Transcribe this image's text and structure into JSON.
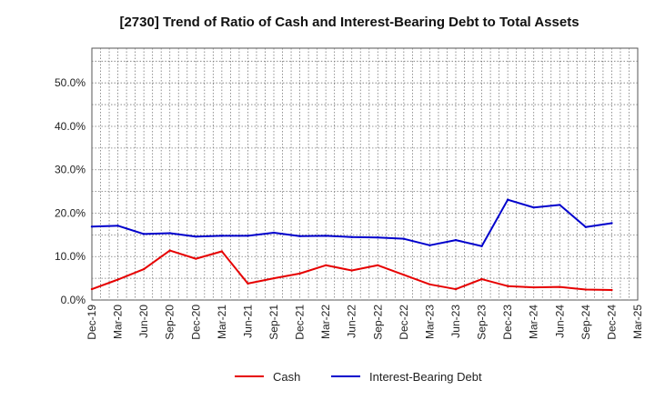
{
  "chart_data": {
    "type": "line",
    "title": "[2730]  Trend of Ratio of Cash and Interest-Bearing Debt to Total Assets",
    "xlabel": "",
    "ylabel": "",
    "x": [
      "Dec-19",
      "Mar-20",
      "Jun-20",
      "Sep-20",
      "Dec-20",
      "Mar-21",
      "Jun-21",
      "Sep-21",
      "Dec-21",
      "Mar-22",
      "Jun-22",
      "Sep-22",
      "Dec-22",
      "Mar-23",
      "Jun-23",
      "Sep-23",
      "Dec-23",
      "Mar-24",
      "Jun-24",
      "Sep-24",
      "Dec-24",
      "Mar-25"
    ],
    "x_tick_labels": [
      "Dec-19",
      "Mar-20",
      "Jun-20",
      "Sep-20",
      "Dec-20",
      "Mar-21",
      "Jun-21",
      "Sep-21",
      "Dec-21",
      "Mar-22",
      "Jun-22",
      "Sep-22",
      "Dec-22",
      "Mar-23",
      "Jun-23",
      "Sep-23",
      "Dec-23",
      "Mar-24",
      "Jun-24",
      "Sep-24",
      "Dec-24",
      "Mar-25"
    ],
    "y_ticks": [
      0,
      10,
      20,
      30,
      40,
      50
    ],
    "y_tick_labels": [
      "0.0%",
      "10.0%",
      "20.0%",
      "30.0%",
      "40.0%",
      "50.0%"
    ],
    "ylim": [
      0,
      58
    ],
    "grid": true,
    "legend_position": "bottom",
    "series": [
      {
        "name": "Cash",
        "color": "#e60000",
        "values": [
          2.5,
          4.7,
          7.1,
          11.4,
          9.5,
          11.2,
          3.8,
          5.0,
          6.1,
          8.0,
          6.8,
          8.0,
          5.8,
          3.6,
          2.5,
          4.8,
          3.2,
          2.9,
          3.0,
          2.4,
          2.3,
          null
        ]
      },
      {
        "name": "Interest-Bearing Debt",
        "color": "#0000cc",
        "values": [
          16.9,
          17.1,
          15.2,
          15.4,
          14.6,
          14.8,
          14.8,
          15.5,
          14.7,
          14.8,
          14.5,
          14.4,
          14.1,
          12.6,
          13.8,
          12.4,
          23.1,
          21.3,
          21.9,
          16.8,
          17.7,
          null
        ]
      }
    ]
  }
}
